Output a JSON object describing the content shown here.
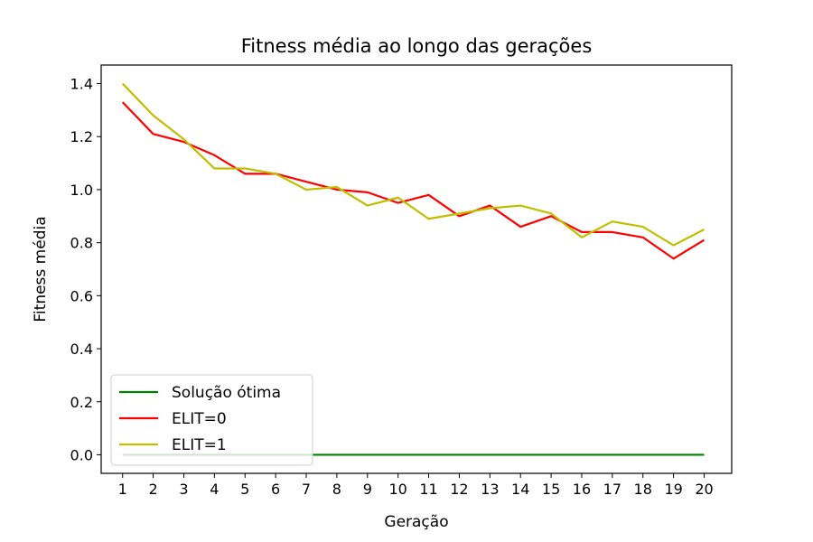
{
  "chart_data": {
    "type": "line",
    "title": "Fitness média ao longo das gerações",
    "xlabel": "Geração",
    "ylabel": "Fitness média",
    "x": [
      1,
      2,
      3,
      4,
      5,
      6,
      7,
      8,
      9,
      10,
      11,
      12,
      13,
      14,
      15,
      16,
      17,
      18,
      19,
      20
    ],
    "x_ticks": [
      "1",
      "2",
      "3",
      "4",
      "5",
      "6",
      "7",
      "8",
      "9",
      "10",
      "11",
      "12",
      "13",
      "14",
      "15",
      "16",
      "17",
      "18",
      "19",
      "20"
    ],
    "y_ticks": [
      "0.0",
      "0.2",
      "0.4",
      "0.6",
      "0.8",
      "1.0",
      "1.2",
      "1.4"
    ],
    "xlim": [
      0.3,
      20.9
    ],
    "ylim": [
      -0.07,
      1.47
    ],
    "grid": false,
    "legend_position": "lower-left",
    "series": [
      {
        "name": "Solução ótima",
        "color": "#008000",
        "values": [
          0,
          0,
          0,
          0,
          0,
          0,
          0,
          0,
          0,
          0,
          0,
          0,
          0,
          0,
          0,
          0,
          0,
          0,
          0,
          0
        ]
      },
      {
        "name": "ELIT=0",
        "color": "#ff0000",
        "values": [
          1.33,
          1.21,
          1.18,
          1.13,
          1.06,
          1.06,
          1.03,
          1.0,
          0.99,
          0.95,
          0.98,
          0.9,
          0.94,
          0.86,
          0.9,
          0.84,
          0.84,
          0.82,
          0.74,
          0.81
        ]
      },
      {
        "name": "ELIT=1",
        "color": "#bfbf00",
        "values": [
          1.4,
          1.28,
          1.19,
          1.08,
          1.08,
          1.06,
          1.0,
          1.01,
          0.94,
          0.97,
          0.89,
          0.91,
          0.93,
          0.94,
          0.91,
          0.82,
          0.88,
          0.86,
          0.79,
          0.85
        ]
      }
    ]
  }
}
